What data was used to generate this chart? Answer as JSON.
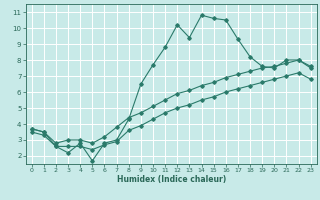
{
  "xlabel": "Humidex (Indice chaleur)",
  "bg_color": "#c8eae8",
  "line_color": "#2a7a6a",
  "grid_color": "#ffffff",
  "xlim": [
    -0.5,
    23.5
  ],
  "ylim": [
    1.5,
    11.5
  ],
  "xticks": [
    0,
    1,
    2,
    3,
    4,
    5,
    6,
    7,
    8,
    9,
    10,
    11,
    12,
    13,
    14,
    15,
    16,
    17,
    18,
    19,
    20,
    21,
    22,
    23
  ],
  "yticks": [
    2,
    3,
    4,
    5,
    6,
    7,
    8,
    9,
    10,
    11
  ],
  "curve1_x": [
    0,
    1,
    2,
    3,
    4,
    5,
    6,
    7,
    8,
    9,
    10,
    11,
    12,
    13,
    14,
    15,
    16,
    17,
    18,
    19,
    20,
    21,
    22,
    23
  ],
  "curve1_y": [
    3.7,
    3.5,
    2.6,
    2.2,
    2.8,
    1.7,
    2.8,
    3.0,
    4.3,
    6.5,
    7.7,
    8.8,
    10.2,
    9.4,
    10.8,
    10.6,
    10.5,
    9.3,
    8.2,
    7.6,
    7.5,
    8.0,
    8.0,
    7.5
  ],
  "curve2_x": [
    0,
    1,
    2,
    3,
    4,
    5,
    6,
    7,
    8,
    9,
    10,
    11,
    12,
    13,
    14,
    15,
    16,
    17,
    18,
    19,
    20,
    21,
    22,
    23
  ],
  "curve2_y": [
    3.7,
    3.5,
    2.8,
    3.0,
    3.0,
    2.8,
    3.2,
    3.8,
    4.4,
    4.7,
    5.1,
    5.5,
    5.9,
    6.1,
    6.4,
    6.6,
    6.9,
    7.1,
    7.3,
    7.5,
    7.6,
    7.8,
    8.0,
    7.6
  ],
  "curve3_x": [
    0,
    1,
    2,
    3,
    4,
    5,
    6,
    7,
    8,
    9,
    10,
    11,
    12,
    13,
    14,
    15,
    16,
    17,
    18,
    19,
    20,
    21,
    22,
    23
  ],
  "curve3_y": [
    3.5,
    3.3,
    2.6,
    2.6,
    2.6,
    2.4,
    2.7,
    2.9,
    3.6,
    3.9,
    4.3,
    4.7,
    5.0,
    5.2,
    5.5,
    5.7,
    6.0,
    6.2,
    6.4,
    6.6,
    6.8,
    7.0,
    7.2,
    6.8
  ]
}
